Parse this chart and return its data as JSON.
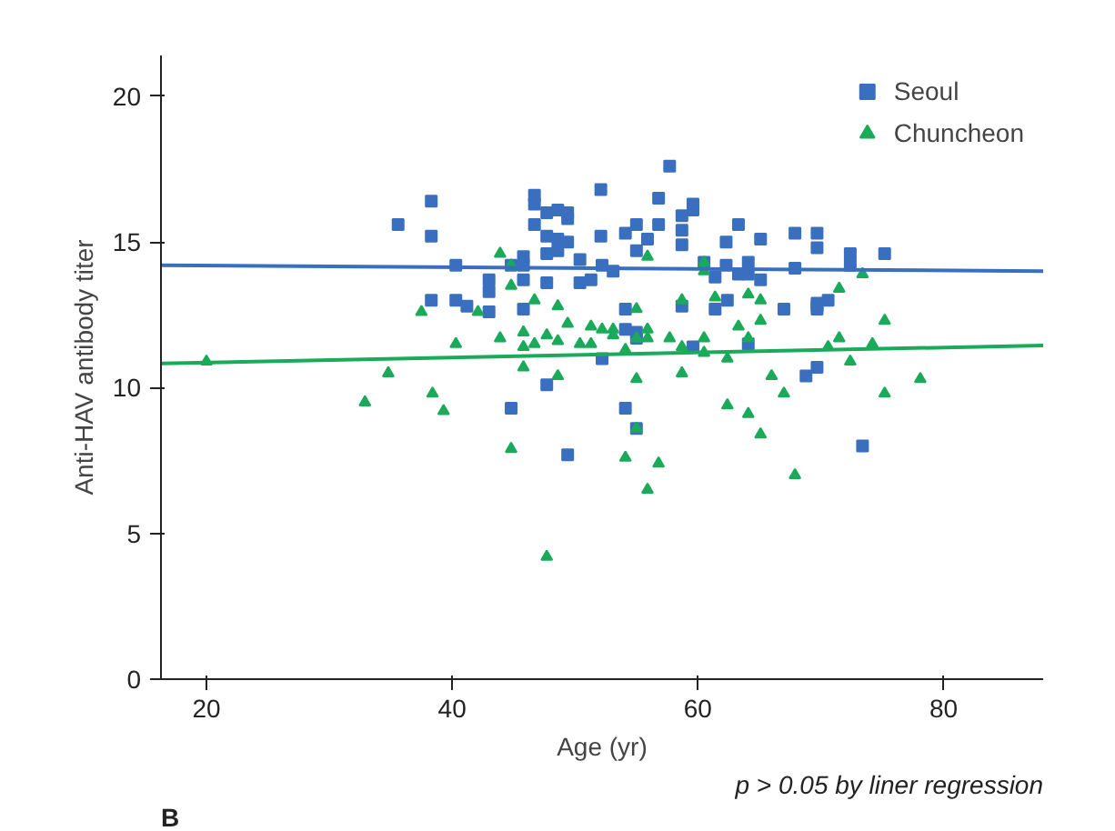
{
  "chart_data": {
    "type": "scatter",
    "xlabel": "Age (yr)",
    "ylabel": "Anti-HAV antibody titer",
    "annotations": [
      "p > 0.05 by liner regression",
      "B"
    ],
    "xlim": [
      16.3,
      88.1
    ],
    "ylim": [
      0,
      21.4
    ],
    "xticks": [
      20,
      40,
      60,
      80
    ],
    "yticks": [
      0,
      5,
      10,
      15,
      20
    ],
    "grid": false,
    "legend": "top right",
    "series": [
      {
        "name": "Seoul",
        "color": "#3a6fc0",
        "marker": "square",
        "x": [
          38.3,
          35.6,
          38.3,
          40.3,
          38.3,
          40.3,
          41.2,
          57.7,
          46.7,
          46.7,
          52.1,
          56.8,
          59.6,
          59.6,
          47.7,
          48.6,
          49.4,
          49.4,
          46.7,
          58.7,
          55.0,
          56.8,
          63.3,
          52.1,
          58.7,
          54.1,
          47.7,
          48.6,
          49.4,
          55.9,
          55.0,
          58.7,
          62.3,
          65.1,
          67.9,
          69.7,
          69.7,
          72.4,
          75.2,
          47.7,
          48.6,
          45.8,
          44.8,
          45.8,
          50.4,
          52.2,
          53.1,
          60.5,
          62.3,
          63.3,
          64.1,
          64.1,
          65.1,
          61.4,
          67.9,
          72.4,
          43.0,
          43.0,
          43.0,
          45.8,
          47.7,
          50.4,
          51.3,
          45.8,
          54.1,
          58.7,
          61.4,
          62.4,
          67.0,
          69.7,
          69.7,
          69.7,
          70.6,
          54.1,
          55.0,
          55.0,
          59.6,
          64.1,
          52.2,
          69.7,
          68.8,
          47.7,
          44.8,
          54.1,
          55.0,
          49.4,
          73.4
        ],
        "values": [
          16.4,
          15.6,
          15.2,
          14.2,
          13.0,
          13.0,
          12.8,
          17.6,
          16.6,
          16.3,
          16.8,
          16.5,
          16.3,
          16.1,
          16.0,
          16.1,
          16.0,
          15.8,
          15.6,
          15.9,
          15.6,
          15.6,
          15.6,
          15.2,
          15.4,
          15.3,
          15.2,
          15.1,
          15.0,
          15.1,
          14.7,
          14.9,
          15.0,
          15.1,
          15.3,
          15.3,
          14.8,
          14.6,
          14.6,
          14.6,
          14.7,
          14.5,
          14.2,
          14.2,
          14.4,
          14.2,
          14.0,
          14.3,
          14.2,
          13.9,
          14.3,
          13.9,
          13.7,
          13.8,
          14.1,
          14.2,
          13.7,
          13.3,
          12.6,
          13.7,
          13.6,
          13.6,
          13.7,
          12.7,
          12.7,
          12.8,
          12.7,
          13.0,
          12.7,
          12.9,
          12.8,
          12.7,
          13.0,
          12.0,
          11.9,
          11.7,
          11.4,
          11.5,
          11.0,
          10.7,
          10.4,
          10.1,
          9.3,
          9.3,
          8.6,
          7.7,
          8.0
        ]
      },
      {
        "name": "Chuncheon",
        "color": "#1aaa5a",
        "marker": "triangle",
        "x": [
          20.0,
          37.5,
          40.3,
          34.8,
          32.9,
          38.4,
          39.3,
          43.9,
          55.9,
          60.5,
          60.5,
          44.8,
          73.4,
          44.8,
          71.5,
          64.1,
          65.1,
          46.7,
          58.7,
          61.4,
          48.6,
          55.0,
          42.1,
          65.1,
          75.2,
          63.3,
          49.4,
          51.3,
          52.2,
          53.1,
          53.1,
          55.9,
          55.9,
          55.0,
          43.9,
          45.8,
          47.7,
          48.6,
          46.7,
          45.8,
          50.4,
          51.3,
          57.7,
          60.5,
          64.1,
          71.5,
          74.2,
          70.6,
          54.1,
          58.7,
          60.5,
          62.4,
          72.4,
          45.8,
          58.7,
          48.6,
          66.0,
          55.0,
          75.2,
          67.0,
          62.4,
          64.1,
          65.1,
          55.0,
          44.8,
          54.1,
          56.8,
          67.9,
          55.9,
          47.7,
          78.1
        ],
        "values": [
          10.9,
          12.6,
          11.5,
          10.5,
          9.5,
          9.8,
          9.2,
          14.6,
          14.5,
          14.3,
          14.0,
          14.2,
          13.9,
          13.5,
          13.4,
          13.2,
          13.0,
          13.0,
          13.0,
          13.1,
          12.8,
          12.7,
          12.6,
          12.3,
          12.3,
          12.1,
          12.2,
          12.1,
          12.0,
          12.0,
          11.8,
          12.0,
          11.7,
          11.7,
          11.7,
          11.9,
          11.8,
          11.6,
          11.5,
          11.4,
          11.5,
          11.5,
          11.7,
          11.7,
          11.7,
          11.7,
          11.5,
          11.4,
          11.3,
          11.4,
          11.2,
          11.0,
          10.9,
          10.7,
          10.5,
          10.4,
          10.4,
          10.3,
          9.8,
          9.8,
          9.4,
          9.1,
          8.4,
          8.6,
          7.9,
          7.6,
          7.4,
          7.0,
          6.5,
          4.2,
          10.3
        ]
      },
      {
        "type": "line",
        "color": "#3a6fc0",
        "x": [
          16.3,
          88.1
        ],
        "values": [
          14.2,
          14.0
        ]
      },
      {
        "type": "line",
        "color": "#1aaa5a",
        "x": [
          16.3,
          88.1
        ],
        "values": [
          10.83,
          11.45
        ]
      }
    ]
  }
}
